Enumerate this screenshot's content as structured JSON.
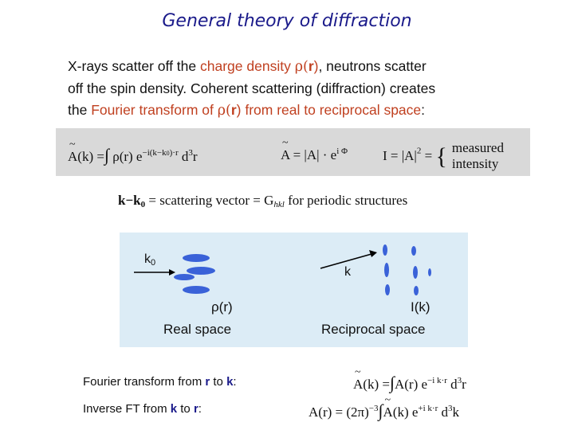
{
  "title": "General theory of diffraction",
  "intro": {
    "line1_a": "X-rays scatter off the ",
    "line1_charge": "charge density ",
    "line1_rho": "ρ(",
    "line1_r": "r",
    "line1_close": ")",
    "line1_b": ", neutrons scatter",
    "line2": "off the spin density. Coherent scattering (diffraction) creates",
    "line3_a": "the ",
    "line3_ft": "Fourier transform of ",
    "line3_rho": "ρ(",
    "line3_r": "r",
    "line3_close": ")",
    "line3_rest": " from real to reciprocal space",
    "line3_colon": ":"
  },
  "formulas": {
    "f1_lhs": "A(k) = ",
    "f1_integral": "∫",
    "f1_rho": "ρ(r) e",
    "f1_exp": "−i(k−k",
    "f1_exp_sub": "0",
    "f1_exp_end": ")·r",
    "f1_d": " d",
    "f1_d3": "3",
    "f1_r": "r",
    "f2": "A = |A| · e",
    "f2_exp": "i Φ",
    "f3": "I = |A|",
    "f3_sq": "2",
    "f3_eq": " = ",
    "f3_brace": "{",
    "f3_measured": "measured",
    "f3_intensity": "intensity"
  },
  "scattering_vector": {
    "k": "k−k",
    "k_sub": "0",
    "rest": " = scattering vector = G",
    "g_sub": "hkl",
    "end": " for periodic structures"
  },
  "diagram": {
    "k0": "k",
    "k0_sub": "0",
    "k": "k",
    "rho_label": "ρ(r)",
    "real_space": "Real space",
    "intensity_label": "I(k)",
    "reciprocal_space": "Reciprocal space"
  },
  "transforms": {
    "forward_label_a": "Fourier transform from ",
    "forward_r": "r",
    "forward_to": " to ",
    "forward_k": "k",
    "forward_colon": ":",
    "forward_eq_a": "A(k) = ",
    "forward_integral": "∫",
    "forward_eq_b": "A(r) e",
    "forward_exp": "−i k·r",
    "forward_d": " d",
    "forward_d3": "3",
    "forward_r2": "r",
    "inverse_label_a": "Inverse FT from ",
    "inverse_k": "k",
    "inverse_to": " to ",
    "inverse_r": "r",
    "inverse_colon": ":",
    "inverse_eq_a": "A(r) = (2π)",
    "inverse_exp1": "−3",
    "inverse_integral": "∫",
    "inverse_eq_b": "A(k) e",
    "inverse_exp2": "+i k·r",
    "inverse_d": " d",
    "inverse_d3": "3",
    "inverse_k2": "k"
  },
  "colors": {
    "title": "#1a1a8a",
    "highlight": "#c04020",
    "formula_box": "#d9d9d9",
    "diagram_bg": "#dcecf6",
    "blob": "#3a62d8"
  }
}
